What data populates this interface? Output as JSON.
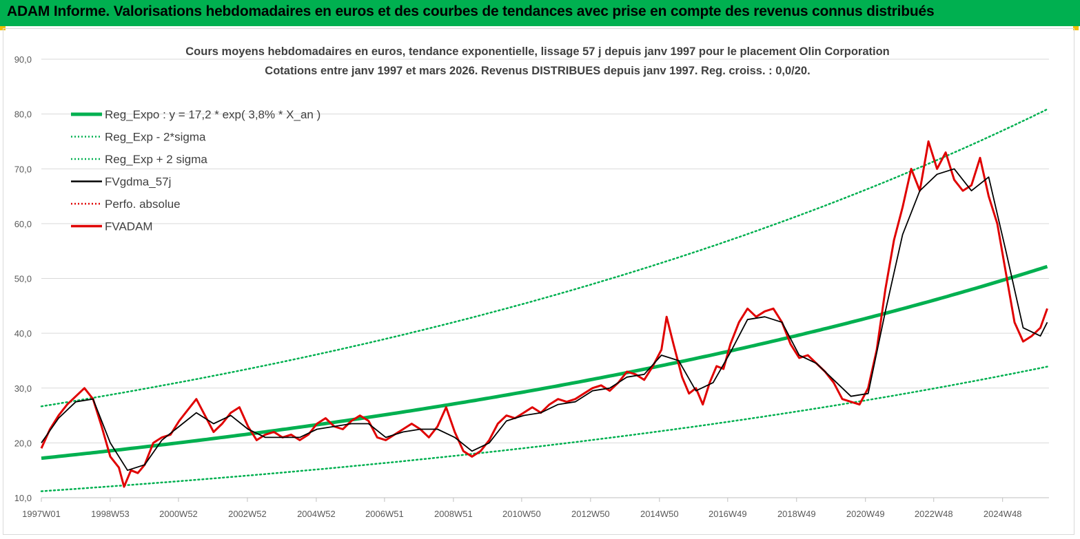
{
  "header": {
    "title": "ADAM Informe. Valorisations hebdomadaires en euros et des courbes de tendances avec prise en compte des revenus connus distribués",
    "background": "#00b050"
  },
  "chart_data": {
    "type": "line",
    "title": "Cours moyens hebdomadaires en euros, tendance exponentielle, lissage 57 j depuis janv 1997 pour le placement Olin Corporation",
    "subtitle": "Cotations entre janv 1997 et mars 2026. Revenus DISTRIBUES depuis janv 1997. Reg. croiss. : 0,0/20.",
    "xlabel": "",
    "ylabel": "",
    "ylim": [
      10,
      90
    ],
    "xlim": [
      1997.0,
      2026.25
    ],
    "grid": true,
    "legend_position": "top-left",
    "y_ticks": [
      "10,0",
      "20,0",
      "30,0",
      "40,0",
      "50,0",
      "60,0",
      "70,0",
      "80,0",
      "90,0"
    ],
    "x_ticks": [
      "1997W01",
      "1998W53",
      "2000W52",
      "2002W52",
      "2004W52",
      "2006W51",
      "2008W51",
      "2010W50",
      "2012W50",
      "2014W50",
      "2016W49",
      "2018W49",
      "2020W49",
      "2022W48",
      "2024W48"
    ],
    "legend": [
      {
        "label": "Reg_Expo : y = 17,2 * exp( 3,8% *  X_an )",
        "color": "#00b050",
        "style": "solid-thick"
      },
      {
        "label": "Reg_Exp - 2*sigma",
        "color": "#00b050",
        "style": "dotted"
      },
      {
        "label": "Reg_Exp + 2 sigma",
        "color": "#00b050",
        "style": "dotted"
      },
      {
        "label": "FVgdma_57j",
        "color": "#000000",
        "style": "solid"
      },
      {
        "label": "Perfo. absolue",
        "color": "#e00000",
        "style": "dotted"
      },
      {
        "label": "FVADAM",
        "color": "#e00000",
        "style": "solid-thick"
      }
    ],
    "regression": {
      "a": 17.2,
      "rate": 0.038,
      "lower_factor": 0.65,
      "upper_factor": 1.55
    },
    "series": [
      {
        "name": "FVADAM",
        "color": "#e00000",
        "points": [
          [
            1997.0,
            19.0
          ],
          [
            1997.25,
            22.5
          ],
          [
            1997.5,
            25.0
          ],
          [
            1997.75,
            27.0
          ],
          [
            1998.0,
            28.5
          ],
          [
            1998.25,
            30.0
          ],
          [
            1998.5,
            28.0
          ],
          [
            1998.75,
            23.0
          ],
          [
            1999.0,
            17.5
          ],
          [
            1999.25,
            15.5
          ],
          [
            1999.4,
            12.0
          ],
          [
            1999.6,
            15.0
          ],
          [
            1999.8,
            14.5
          ],
          [
            2000.0,
            16.0
          ],
          [
            2000.25,
            20.0
          ],
          [
            2000.5,
            21.0
          ],
          [
            2000.75,
            21.5
          ],
          [
            2001.0,
            24.0
          ],
          [
            2001.25,
            26.0
          ],
          [
            2001.5,
            28.0
          ],
          [
            2001.75,
            25.0
          ],
          [
            2002.0,
            22.0
          ],
          [
            2002.25,
            23.5
          ],
          [
            2002.5,
            25.5
          ],
          [
            2002.75,
            26.5
          ],
          [
            2003.0,
            23.0
          ],
          [
            2003.25,
            20.5
          ],
          [
            2003.5,
            21.5
          ],
          [
            2003.75,
            22.0
          ],
          [
            2004.0,
            21.0
          ],
          [
            2004.25,
            21.5
          ],
          [
            2004.5,
            20.5
          ],
          [
            2004.75,
            21.5
          ],
          [
            2005.0,
            23.5
          ],
          [
            2005.25,
            24.5
          ],
          [
            2005.5,
            23.0
          ],
          [
            2005.75,
            22.5
          ],
          [
            2006.0,
            24.0
          ],
          [
            2006.25,
            25.0
          ],
          [
            2006.5,
            24.0
          ],
          [
            2006.75,
            21.0
          ],
          [
            2007.0,
            20.5
          ],
          [
            2007.25,
            21.5
          ],
          [
            2007.5,
            22.5
          ],
          [
            2007.75,
            23.5
          ],
          [
            2008.0,
            22.5
          ],
          [
            2008.25,
            21.0
          ],
          [
            2008.5,
            23.0
          ],
          [
            2008.75,
            26.5
          ],
          [
            2009.0,
            22.0
          ],
          [
            2009.25,
            18.5
          ],
          [
            2009.5,
            17.5
          ],
          [
            2009.75,
            18.5
          ],
          [
            2010.0,
            20.5
          ],
          [
            2010.25,
            23.5
          ],
          [
            2010.5,
            25.0
          ],
          [
            2010.75,
            24.5
          ],
          [
            2011.0,
            25.5
          ],
          [
            2011.25,
            26.5
          ],
          [
            2011.5,
            25.5
          ],
          [
            2011.75,
            27.0
          ],
          [
            2012.0,
            28.0
          ],
          [
            2012.25,
            27.5
          ],
          [
            2012.5,
            28.0
          ],
          [
            2012.75,
            29.0
          ],
          [
            2013.0,
            30.0
          ],
          [
            2013.25,
            30.5
          ],
          [
            2013.5,
            29.5
          ],
          [
            2013.75,
            31.0
          ],
          [
            2014.0,
            33.0
          ],
          [
            2014.25,
            32.5
          ],
          [
            2014.5,
            31.5
          ],
          [
            2014.75,
            34.0
          ],
          [
            2015.0,
            37.0
          ],
          [
            2015.15,
            43.0
          ],
          [
            2015.35,
            38.0
          ],
          [
            2015.6,
            32.0
          ],
          [
            2015.8,
            29.0
          ],
          [
            2016.0,
            30.0
          ],
          [
            2016.2,
            27.0
          ],
          [
            2016.4,
            31.0
          ],
          [
            2016.6,
            34.0
          ],
          [
            2016.8,
            33.5
          ],
          [
            2017.0,
            38.0
          ],
          [
            2017.25,
            42.0
          ],
          [
            2017.5,
            44.5
          ],
          [
            2017.75,
            43.0
          ],
          [
            2018.0,
            44.0
          ],
          [
            2018.25,
            44.5
          ],
          [
            2018.5,
            42.0
          ],
          [
            2018.75,
            38.0
          ],
          [
            2019.0,
            35.5
          ],
          [
            2019.25,
            36.0
          ],
          [
            2019.5,
            34.5
          ],
          [
            2019.75,
            33.0
          ],
          [
            2020.0,
            31.0
          ],
          [
            2020.25,
            28.0
          ],
          [
            2020.5,
            27.5
          ],
          [
            2020.75,
            27.0
          ],
          [
            2021.0,
            30.0
          ],
          [
            2021.25,
            37.0
          ],
          [
            2021.5,
            48.0
          ],
          [
            2021.75,
            57.0
          ],
          [
            2022.0,
            63.0
          ],
          [
            2022.25,
            70.0
          ],
          [
            2022.5,
            66.0
          ],
          [
            2022.75,
            75.0
          ],
          [
            2023.0,
            70.0
          ],
          [
            2023.25,
            73.0
          ],
          [
            2023.5,
            68.0
          ],
          [
            2023.75,
            66.0
          ],
          [
            2024.0,
            67.0
          ],
          [
            2024.25,
            72.0
          ],
          [
            2024.5,
            65.0
          ],
          [
            2024.75,
            60.0
          ],
          [
            2025.0,
            51.0
          ],
          [
            2025.25,
            42.0
          ],
          [
            2025.5,
            38.5
          ],
          [
            2025.75,
            39.5
          ],
          [
            2026.0,
            41.0
          ],
          [
            2026.2,
            44.5
          ]
        ]
      },
      {
        "name": "FVgdma_57j",
        "color": "#000000",
        "points": [
          [
            1997.0,
            20.0
          ],
          [
            1997.5,
            24.5
          ],
          [
            1998.0,
            27.5
          ],
          [
            1998.5,
            28.0
          ],
          [
            1999.0,
            20.0
          ],
          [
            1999.5,
            15.0
          ],
          [
            2000.0,
            16.0
          ],
          [
            2000.5,
            20.5
          ],
          [
            2001.0,
            23.0
          ],
          [
            2001.5,
            25.5
          ],
          [
            2002.0,
            23.5
          ],
          [
            2002.5,
            25.0
          ],
          [
            2003.0,
            22.5
          ],
          [
            2003.5,
            21.0
          ],
          [
            2004.0,
            21.0
          ],
          [
            2004.5,
            21.0
          ],
          [
            2005.0,
            22.5
          ],
          [
            2005.5,
            23.0
          ],
          [
            2006.0,
            23.5
          ],
          [
            2006.5,
            23.5
          ],
          [
            2007.0,
            21.0
          ],
          [
            2007.5,
            22.0
          ],
          [
            2008.0,
            22.5
          ],
          [
            2008.5,
            22.5
          ],
          [
            2009.0,
            21.0
          ],
          [
            2009.5,
            18.5
          ],
          [
            2010.0,
            20.0
          ],
          [
            2010.5,
            24.0
          ],
          [
            2011.0,
            25.0
          ],
          [
            2011.5,
            25.5
          ],
          [
            2012.0,
            27.0
          ],
          [
            2012.5,
            27.5
          ],
          [
            2013.0,
            29.5
          ],
          [
            2013.5,
            30.0
          ],
          [
            2014.0,
            32.0
          ],
          [
            2014.5,
            32.5
          ],
          [
            2015.0,
            36.0
          ],
          [
            2015.5,
            35.0
          ],
          [
            2016.0,
            29.5
          ],
          [
            2016.5,
            31.0
          ],
          [
            2017.0,
            36.5
          ],
          [
            2017.5,
            42.5
          ],
          [
            2018.0,
            43.0
          ],
          [
            2018.5,
            42.0
          ],
          [
            2019.0,
            36.0
          ],
          [
            2019.5,
            34.5
          ],
          [
            2020.0,
            31.5
          ],
          [
            2020.5,
            28.5
          ],
          [
            2021.0,
            29.0
          ],
          [
            2021.5,
            44.0
          ],
          [
            2022.0,
            58.0
          ],
          [
            2022.5,
            66.0
          ],
          [
            2023.0,
            69.0
          ],
          [
            2023.5,
            70.0
          ],
          [
            2024.0,
            66.0
          ],
          [
            2024.5,
            68.5
          ],
          [
            2025.0,
            55.0
          ],
          [
            2025.5,
            41.0
          ],
          [
            2026.0,
            39.5
          ],
          [
            2026.2,
            42.0
          ]
        ]
      }
    ]
  }
}
